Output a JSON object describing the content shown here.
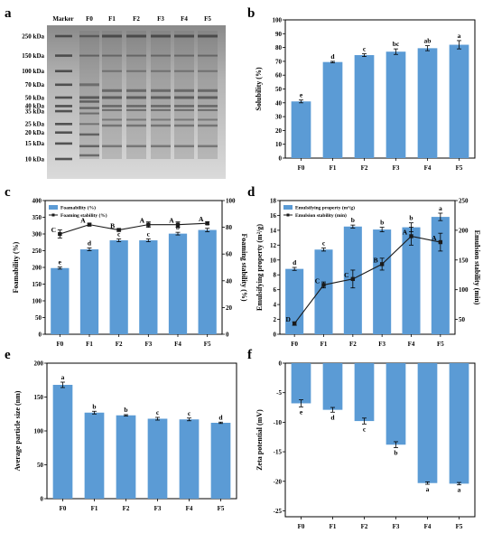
{
  "colors": {
    "bar": "#5b9bd5",
    "line": "#1a1a1a",
    "frame": "#000000"
  },
  "categories": [
    "F0",
    "F1",
    "F2",
    "F3",
    "F4",
    "F5"
  ],
  "chart_data": [
    {
      "panel": "a",
      "type": "gel",
      "lane_labels": [
        "Marker",
        "F0",
        "F1",
        "F2",
        "F3",
        "F4",
        "F5"
      ],
      "marker_labels": [
        "250 kDa",
        "150 kDa",
        "100 kDa",
        "70 kDa",
        "50 kDa",
        "40 kDa",
        "35 kDa",
        "25 kDa",
        "20 kDa",
        "15 kDa",
        "10 kDa"
      ],
      "marker_kda": [
        250,
        150,
        100,
        70,
        50,
        40,
        35,
        25,
        20,
        15,
        10
      ]
    },
    {
      "panel": "b",
      "type": "bar",
      "categories": [
        "F0",
        "F1",
        "F2",
        "F3",
        "F4",
        "F5"
      ],
      "values": [
        41,
        69.5,
        74.5,
        77,
        79.5,
        82
      ],
      "errors": [
        1,
        0.5,
        1,
        2,
        1.8,
        3
      ],
      "letters": [
        "e",
        "d",
        "c",
        "bc",
        "ab",
        "a"
      ],
      "ylabel": "Solubility (%)",
      "ylim": [
        0,
        100
      ],
      "yticks": [
        0,
        10,
        20,
        30,
        40,
        50,
        60,
        70,
        80,
        90,
        100
      ]
    },
    {
      "panel": "c",
      "type": "bar+line",
      "categories": [
        "F0",
        "F1",
        "F2",
        "F3",
        "F4",
        "F5"
      ],
      "series": [
        {
          "name": "Foamability (%)",
          "type": "bar",
          "values": [
            198,
            254,
            281,
            281,
            301,
            312
          ],
          "errors": [
            3,
            4,
            4,
            4,
            4,
            5
          ],
          "letters": [
            "e",
            "d",
            "c",
            "c",
            "b",
            "a"
          ]
        },
        {
          "name": "Foaming stability (%)",
          "type": "line",
          "values": [
            75,
            82,
            78,
            82,
            82,
            83
          ],
          "errors": [
            3,
            1,
            1,
            2,
            2,
            1
          ],
          "letters": [
            "C",
            "A",
            "B",
            "A",
            "A",
            "A"
          ]
        }
      ],
      "ylabel": "Foamability (%)",
      "ylim": [
        0,
        400
      ],
      "yticks": [
        0,
        50,
        100,
        150,
        200,
        250,
        300,
        350,
        400
      ],
      "y2label": "Foaming stability (%)",
      "y2lim": [
        0,
        100
      ],
      "y2ticks": [
        0,
        20,
        40,
        60,
        80,
        100
      ],
      "legend": "top-left"
    },
    {
      "panel": "d",
      "type": "bar+line",
      "categories": [
        "F0",
        "F1",
        "F2",
        "F3",
        "F4",
        "F5"
      ],
      "series": [
        {
          "name": "Emulsifying property (m²/g)",
          "type": "bar",
          "values": [
            8.8,
            11.4,
            14.5,
            14.1,
            14.4,
            15.8
          ],
          "errors": [
            0.2,
            0.2,
            0.2,
            0.3,
            0.6,
            0.5
          ],
          "letters": [
            "d",
            "c",
            "b",
            "b",
            "b",
            "a"
          ]
        },
        {
          "name": "Emulsion stability (min)",
          "type": "line",
          "values": [
            43,
            108,
            118,
            143,
            190,
            180
          ],
          "errors": [
            3,
            5,
            15,
            10,
            15,
            15
          ],
          "letters": [
            "D",
            "C",
            "C",
            "B",
            "A",
            "A"
          ]
        }
      ],
      "ylabel": "Emulsifying property (m²/g)",
      "ylim": [
        0,
        18
      ],
      "yticks": [
        0,
        2,
        4,
        6,
        8,
        10,
        12,
        14,
        16,
        18
      ],
      "y2label": "Emulsion stability (min)",
      "y2lim": [
        25,
        250
      ],
      "y2ticks": [
        50,
        100,
        150,
        200,
        250
      ],
      "legend": "top-left"
    },
    {
      "panel": "e",
      "type": "bar",
      "categories": [
        "F0",
        "F1",
        "F2",
        "F3",
        "F4",
        "F5"
      ],
      "values": [
        168,
        127,
        123,
        118,
        117,
        112
      ],
      "errors": [
        4,
        2,
        1,
        2,
        2,
        1
      ],
      "letters": [
        "a",
        "b",
        "b",
        "c",
        "c",
        "d"
      ],
      "ylabel": "Average particle size (nm)",
      "ylim": [
        0,
        200
      ],
      "yticks": [
        0,
        50,
        100,
        150,
        200
      ]
    },
    {
      "panel": "f",
      "type": "bar",
      "categories": [
        "F0",
        "F1",
        "F2",
        "F3",
        "F4",
        "F5"
      ],
      "values": [
        -6.8,
        -7.9,
        -9.8,
        -13.8,
        -20.3,
        -20.4
      ],
      "errors": [
        0.6,
        0.4,
        0.5,
        0.5,
        0.2,
        0.2
      ],
      "letters": [
        "e",
        "d",
        "c",
        "b",
        "a",
        "a"
      ],
      "ylabel": "Zeta potential (mV)",
      "ylim": [
        -26,
        0
      ],
      "yticks": [
        0,
        -5,
        -10,
        -15,
        -20,
        -25
      ]
    }
  ]
}
